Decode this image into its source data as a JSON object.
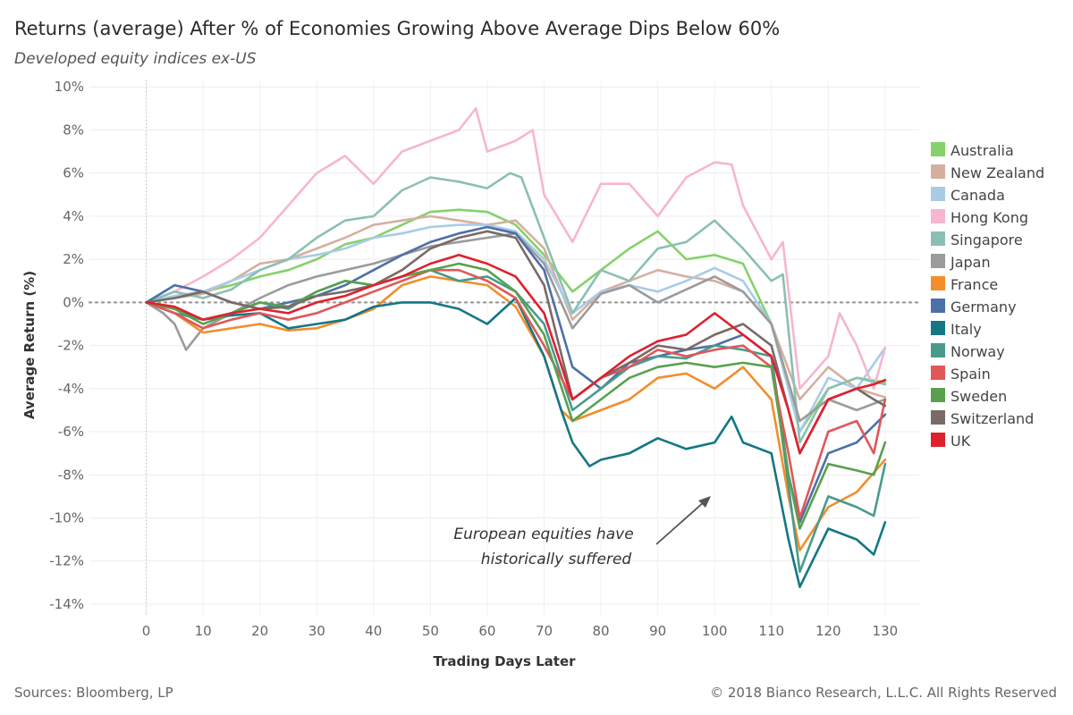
{
  "header": {
    "title": "Returns (average) After % of Economies Growing Above Average Dips Below 60%",
    "subtitle": "Developed equity indices ex-US"
  },
  "footer": {
    "source": "Sources: Bloomberg, LP",
    "copyright": "© 2018 Bianco Research, L.L.C. All Rights Reserved"
  },
  "chart_data": {
    "type": "line",
    "title": "Returns (average) After % of Economies Growing Above Average Dips Below 60%",
    "subtitle": "Developed equity indices ex-US",
    "xlabel": "Trading Days Later",
    "ylabel": "Average Return (%)",
    "xlim": [
      -10,
      136
    ],
    "ylim": [
      -14.5,
      10.3
    ],
    "x_ticks": [
      0,
      10,
      20,
      30,
      40,
      50,
      60,
      70,
      80,
      90,
      100,
      110,
      120,
      130
    ],
    "y_ticks": [
      10,
      8,
      6,
      4,
      2,
      0,
      -2,
      -4,
      -6,
      -8,
      -10,
      -12,
      -14
    ],
    "y_tick_labels": [
      "10%",
      "8%",
      "6%",
      "4%",
      "2%",
      "0%",
      "-2%",
      "-4%",
      "-6%",
      "-8%",
      "-10%",
      "-12%",
      "-14%"
    ],
    "grid": true,
    "zero_line": "dotted",
    "legend_position": "right",
    "annotation": {
      "lines": [
        "European equities have",
        "historically suffered"
      ],
      "arrow": true
    },
    "series": [
      {
        "name": "Australia",
        "color": "#86d16b",
        "x": [
          0,
          5,
          10,
          15,
          20,
          25,
          30,
          35,
          40,
          45,
          50,
          55,
          60,
          65,
          70,
          75,
          80,
          85,
          90,
          95,
          100,
          105,
          110,
          115,
          120,
          125,
          130
        ],
        "values": [
          0,
          0.3,
          0.5,
          0.8,
          1.2,
          1.5,
          2.0,
          2.7,
          3.0,
          3.6,
          4.2,
          4.3,
          4.2,
          3.6,
          2.2,
          0.5,
          1.5,
          2.5,
          3.3,
          2.0,
          2.2,
          1.8,
          -1.0,
          -6.0,
          -4.0,
          -3.5,
          -3.7
        ]
      },
      {
        "name": "New Zealand",
        "color": "#d4b0a0",
        "x": [
          0,
          5,
          10,
          15,
          20,
          25,
          30,
          35,
          40,
          45,
          50,
          55,
          60,
          65,
          70,
          75,
          80,
          85,
          90,
          95,
          100,
          105,
          110,
          115,
          120,
          125,
          130
        ],
        "values": [
          0,
          0.2,
          0.4,
          1.0,
          1.8,
          2.0,
          2.5,
          3.0,
          3.6,
          3.8,
          4.0,
          3.8,
          3.6,
          3.8,
          2.5,
          -0.8,
          0.5,
          1.0,
          1.5,
          1.2,
          1.0,
          0.5,
          -1.0,
          -4.5,
          -3.0,
          -4.0,
          -4.4
        ]
      },
      {
        "name": "Canada",
        "color": "#a8cce6",
        "x": [
          0,
          5,
          10,
          15,
          20,
          25,
          30,
          35,
          40,
          45,
          50,
          55,
          60,
          65,
          70,
          75,
          80,
          85,
          90,
          95,
          100,
          105,
          110,
          115,
          120,
          125,
          130
        ],
        "values": [
          0,
          0.3,
          0.5,
          1.0,
          1.5,
          2.0,
          2.2,
          2.5,
          3.0,
          3.2,
          3.5,
          3.6,
          3.6,
          3.3,
          2.0,
          -0.5,
          0.5,
          0.8,
          0.5,
          1.0,
          1.6,
          1.0,
          -1.0,
          -6.0,
          -3.5,
          -4.0,
          -2.1
        ]
      },
      {
        "name": "Hong Kong",
        "color": "#f6b6cf",
        "x": [
          0,
          5,
          10,
          15,
          20,
          25,
          30,
          35,
          40,
          45,
          50,
          55,
          58,
          60,
          65,
          68,
          70,
          75,
          80,
          85,
          90,
          95,
          100,
          103,
          105,
          110,
          112,
          115,
          120,
          122,
          125,
          128,
          130
        ],
        "values": [
          0,
          0.5,
          1.2,
          2.0,
          3.0,
          4.5,
          6.0,
          6.8,
          5.5,
          7.0,
          7.5,
          8.0,
          9.0,
          7.0,
          7.5,
          8.0,
          5.0,
          2.8,
          5.5,
          5.5,
          4.0,
          5.8,
          6.5,
          6.4,
          4.5,
          2.0,
          2.8,
          -4.0,
          -2.5,
          -0.5,
          -2.0,
          -4.0,
          -2.1
        ]
      },
      {
        "name": "Singapore",
        "color": "#8cbfb4",
        "x": [
          0,
          5,
          10,
          15,
          20,
          25,
          30,
          35,
          40,
          45,
          50,
          55,
          60,
          64,
          66,
          70,
          75,
          80,
          85,
          90,
          95,
          100,
          105,
          110,
          112,
          115,
          120,
          125,
          130
        ],
        "values": [
          0,
          0.5,
          0.2,
          0.6,
          1.5,
          2.0,
          3.0,
          3.8,
          4.0,
          5.2,
          5.8,
          5.6,
          5.3,
          6.0,
          5.8,
          3.0,
          -0.5,
          1.5,
          1.0,
          2.5,
          2.8,
          3.8,
          2.5,
          1.0,
          1.3,
          -6.5,
          -4.0,
          -3.5,
          -3.8
        ]
      },
      {
        "name": "Japan",
        "color": "#9b9b9b",
        "x": [
          0,
          3,
          5,
          7,
          10,
          15,
          20,
          25,
          30,
          35,
          40,
          45,
          50,
          55,
          60,
          65,
          70,
          75,
          80,
          85,
          90,
          95,
          100,
          105,
          110,
          115,
          120,
          125,
          130
        ],
        "values": [
          0,
          -0.5,
          -1.0,
          -2.2,
          -1.2,
          -0.5,
          0.2,
          0.8,
          1.2,
          1.5,
          1.8,
          2.2,
          2.6,
          2.8,
          3.0,
          3.2,
          1.8,
          -1.2,
          0.4,
          0.8,
          0.0,
          0.6,
          1.2,
          0.5,
          -1.0,
          -5.5,
          -4.5,
          -5.0,
          -4.5
        ]
      },
      {
        "name": "France",
        "color": "#f28e2b",
        "x": [
          0,
          5,
          10,
          15,
          20,
          25,
          30,
          35,
          40,
          45,
          50,
          55,
          60,
          65,
          70,
          73,
          75,
          80,
          85,
          90,
          95,
          100,
          105,
          110,
          113,
          115,
          120,
          125,
          130
        ],
        "values": [
          0,
          -0.5,
          -1.4,
          -1.2,
          -1.0,
          -1.3,
          -1.2,
          -0.8,
          -0.3,
          0.8,
          1.2,
          1.0,
          0.8,
          -0.2,
          -2.5,
          -5.0,
          -5.5,
          -5.0,
          -4.5,
          -3.5,
          -3.3,
          -4.0,
          -3.0,
          -4.5,
          -9.0,
          -11.5,
          -9.5,
          -8.8,
          -7.3
        ]
      },
      {
        "name": "Germany",
        "color": "#4e6fa8",
        "x": [
          0,
          5,
          10,
          15,
          20,
          25,
          30,
          35,
          40,
          45,
          50,
          55,
          60,
          65,
          70,
          75,
          80,
          85,
          90,
          95,
          100,
          105,
          110,
          113,
          115,
          120,
          125,
          130
        ],
        "values": [
          0,
          0.8,
          0.5,
          0.0,
          -0.3,
          0.0,
          0.3,
          0.8,
          1.5,
          2.2,
          2.8,
          3.2,
          3.5,
          3.2,
          1.5,
          -3.0,
          -4.0,
          -2.8,
          -2.5,
          -2.2,
          -2.0,
          -1.5,
          -2.5,
          -8.0,
          -10.2,
          -7.0,
          -6.5,
          -5.2
        ]
      },
      {
        "name": "Italy",
        "color": "#137785",
        "x": [
          0,
          5,
          10,
          15,
          20,
          25,
          30,
          35,
          40,
          45,
          50,
          55,
          60,
          65,
          70,
          73,
          75,
          78,
          80,
          85,
          90,
          95,
          100,
          103,
          105,
          110,
          113,
          115,
          120,
          125,
          128,
          130
        ],
        "values": [
          0,
          -0.3,
          -0.8,
          -0.6,
          -0.5,
          -1.2,
          -1.0,
          -0.8,
          -0.2,
          0.0,
          0.0,
          -0.3,
          -1.0,
          0.2,
          -2.5,
          -5.0,
          -6.5,
          -7.6,
          -7.3,
          -7.0,
          -6.3,
          -6.8,
          -6.5,
          -5.3,
          -6.5,
          -7.0,
          -11.0,
          -13.2,
          -10.5,
          -11.0,
          -11.7,
          -10.2
        ]
      },
      {
        "name": "Norway",
        "color": "#4a9a8c",
        "x": [
          0,
          5,
          10,
          15,
          20,
          25,
          30,
          35,
          40,
          45,
          50,
          55,
          60,
          65,
          70,
          75,
          80,
          85,
          90,
          95,
          100,
          105,
          110,
          113,
          115,
          120,
          125,
          128,
          130
        ],
        "values": [
          0,
          -0.5,
          -0.8,
          -0.5,
          0.0,
          -0.3,
          0.5,
          1.0,
          0.8,
          1.2,
          1.5,
          1.0,
          1.2,
          0.5,
          -1.0,
          -5.0,
          -4.0,
          -3.0,
          -2.5,
          -2.6,
          -2.0,
          -2.2,
          -2.5,
          -8.5,
          -12.5,
          -9.0,
          -9.5,
          -9.9,
          -7.5
        ]
      },
      {
        "name": "Spain",
        "color": "#e15759",
        "x": [
          0,
          5,
          10,
          15,
          20,
          25,
          30,
          35,
          40,
          45,
          50,
          55,
          60,
          65,
          70,
          75,
          80,
          85,
          90,
          95,
          100,
          105,
          110,
          113,
          115,
          120,
          125,
          128,
          130
        ],
        "values": [
          0,
          -0.5,
          -1.2,
          -0.8,
          -0.5,
          -0.8,
          -0.5,
          0.0,
          0.5,
          1.0,
          1.5,
          1.5,
          1.0,
          0.2,
          -2.0,
          -4.5,
          -3.5,
          -3.0,
          -2.2,
          -2.5,
          -2.2,
          -2.0,
          -3.0,
          -7.0,
          -10.0,
          -6.0,
          -5.5,
          -7.0,
          -4.5
        ]
      },
      {
        "name": "Sweden",
        "color": "#59a14f",
        "x": [
          0,
          5,
          10,
          15,
          20,
          25,
          30,
          35,
          40,
          45,
          50,
          55,
          60,
          65,
          70,
          75,
          80,
          85,
          90,
          95,
          100,
          105,
          110,
          113,
          115,
          120,
          125,
          128,
          130
        ],
        "values": [
          0,
          -0.3,
          -1.0,
          -0.5,
          0.0,
          -0.2,
          0.5,
          1.0,
          0.8,
          1.2,
          1.5,
          1.8,
          1.5,
          0.5,
          -1.5,
          -5.5,
          -4.5,
          -3.5,
          -3.0,
          -2.8,
          -3.0,
          -2.8,
          -3.0,
          -8.0,
          -10.5,
          -7.5,
          -7.8,
          -8.0,
          -6.5
        ]
      },
      {
        "name": "Switzerland",
        "color": "#7a6a66",
        "x": [
          0,
          5,
          10,
          15,
          20,
          25,
          30,
          35,
          40,
          45,
          50,
          55,
          60,
          65,
          70,
          75,
          80,
          85,
          90,
          95,
          100,
          105,
          110,
          113,
          115,
          120,
          125,
          128,
          130
        ],
        "values": [
          0,
          0.2,
          0.5,
          0.0,
          -0.3,
          -0.2,
          0.3,
          0.5,
          0.8,
          1.5,
          2.5,
          3.0,
          3.3,
          3.0,
          0.8,
          -4.5,
          -3.5,
          -2.8,
          -2.0,
          -2.2,
          -1.5,
          -1.0,
          -2.0,
          -5.0,
          -7.0,
          -4.5,
          -4.0,
          -4.5,
          -4.8
        ]
      },
      {
        "name": "UK",
        "color": "#e0202e",
        "x": [
          0,
          5,
          10,
          15,
          20,
          25,
          30,
          35,
          40,
          45,
          50,
          55,
          60,
          65,
          70,
          75,
          80,
          85,
          90,
          95,
          100,
          105,
          110,
          113,
          115,
          120,
          125,
          128,
          130
        ],
        "values": [
          0,
          -0.2,
          -0.8,
          -0.5,
          -0.3,
          -0.5,
          0.0,
          0.3,
          0.8,
          1.2,
          1.8,
          2.2,
          1.8,
          1.2,
          -0.5,
          -4.5,
          -3.5,
          -2.5,
          -1.8,
          -1.5,
          -0.5,
          -1.5,
          -2.5,
          -5.0,
          -7.0,
          -4.5,
          -4.0,
          -3.8,
          -3.6
        ]
      }
    ]
  }
}
